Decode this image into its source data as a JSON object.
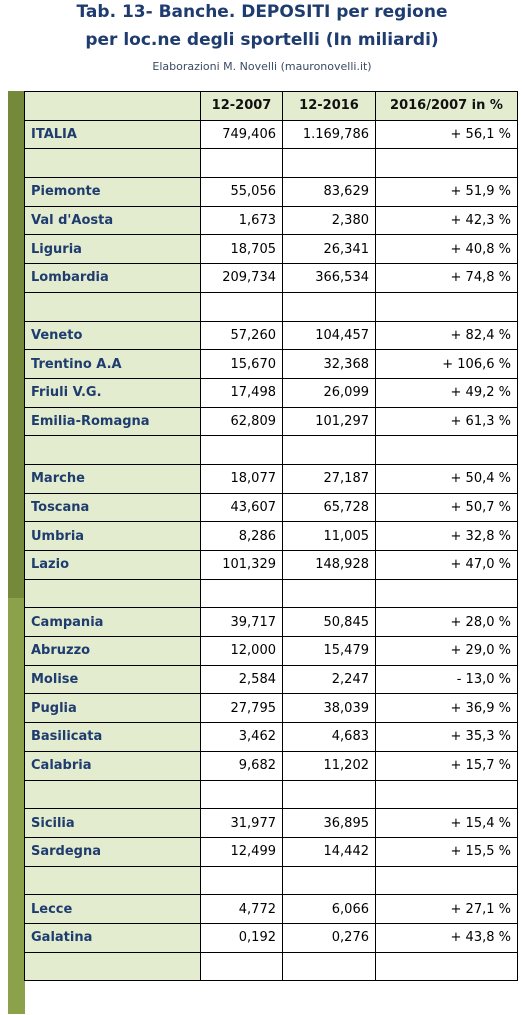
{
  "title_line1": "Tab. 13- Banche. DEPOSITI per regione",
  "title_line2": "per loc.ne degli sportelli (In miliardi)",
  "subtitle": "Elaborazioni M. Novelli (mauronovelli.it)",
  "table": {
    "headers": [
      "",
      "12-2007",
      "12-2016",
      "2016/2007 in %"
    ],
    "rows": [
      [
        "ITALIA",
        "749,406",
        "1.169,786",
        "+ 56,1 %"
      ],
      [
        "",
        "",
        "",
        ""
      ],
      [
        "Piemonte",
        "55,056",
        "83,629",
        "+ 51,9 %"
      ],
      [
        "Val d'Aosta",
        "1,673",
        "2,380",
        "+ 42,3 %"
      ],
      [
        "Liguria",
        "18,705",
        "26,341",
        "+ 40,8 %"
      ],
      [
        "Lombardia",
        "209,734",
        "366,534",
        "+ 74,8 %"
      ],
      [
        "",
        "",
        "",
        ""
      ],
      [
        "Veneto",
        "57,260",
        "104,457",
        "+ 82,4 %"
      ],
      [
        "Trentino A.A",
        "15,670",
        "32,368",
        "+ 106,6 %"
      ],
      [
        "Friuli V.G.",
        "17,498",
        "26,099",
        "+ 49,2 %"
      ],
      [
        "Emilia-Romagna",
        "62,809",
        "101,297",
        "+ 61,3 %"
      ],
      [
        "",
        "",
        "",
        ""
      ],
      [
        "Marche",
        "18,077",
        "27,187",
        "+ 50,4 %"
      ],
      [
        "Toscana",
        "43,607",
        "65,728",
        "+ 50,7 %"
      ],
      [
        "Umbria",
        "8,286",
        "11,005",
        "+ 32,8 %"
      ],
      [
        "Lazio",
        "101,329",
        "148,928",
        "+ 47,0 %"
      ],
      [
        "",
        "",
        "",
        ""
      ],
      [
        "Campania",
        "39,717",
        "50,845",
        "+ 28,0 %"
      ],
      [
        "Abruzzo",
        "12,000",
        "15,479",
        "+ 29,0 %"
      ],
      [
        "Molise",
        "2,584",
        "2,247",
        "- 13,0 %"
      ],
      [
        "Puglia",
        "27,795",
        "38,039",
        "+ 36,9 %"
      ],
      [
        "Basilicata",
        "3,462",
        "4,683",
        "+ 35,3 %"
      ],
      [
        "Calabria",
        "9,682",
        "11,202",
        "+ 15,7 %"
      ],
      [
        "",
        "",
        "",
        ""
      ],
      [
        "Sicilia",
        "31,977",
        "36,895",
        "+ 15,4 %"
      ],
      [
        "Sardegna",
        "12,499",
        "14,442",
        "+ 15,5 %"
      ],
      [
        "",
        "",
        "",
        ""
      ],
      [
        "Lecce",
        "4,772",
        "6,066",
        "+ 27,1 %"
      ],
      [
        "Galatina",
        "0,192",
        "0,276",
        "+ 43,8 %"
      ],
      [
        "",
        "",
        "",
        ""
      ]
    ]
  }
}
